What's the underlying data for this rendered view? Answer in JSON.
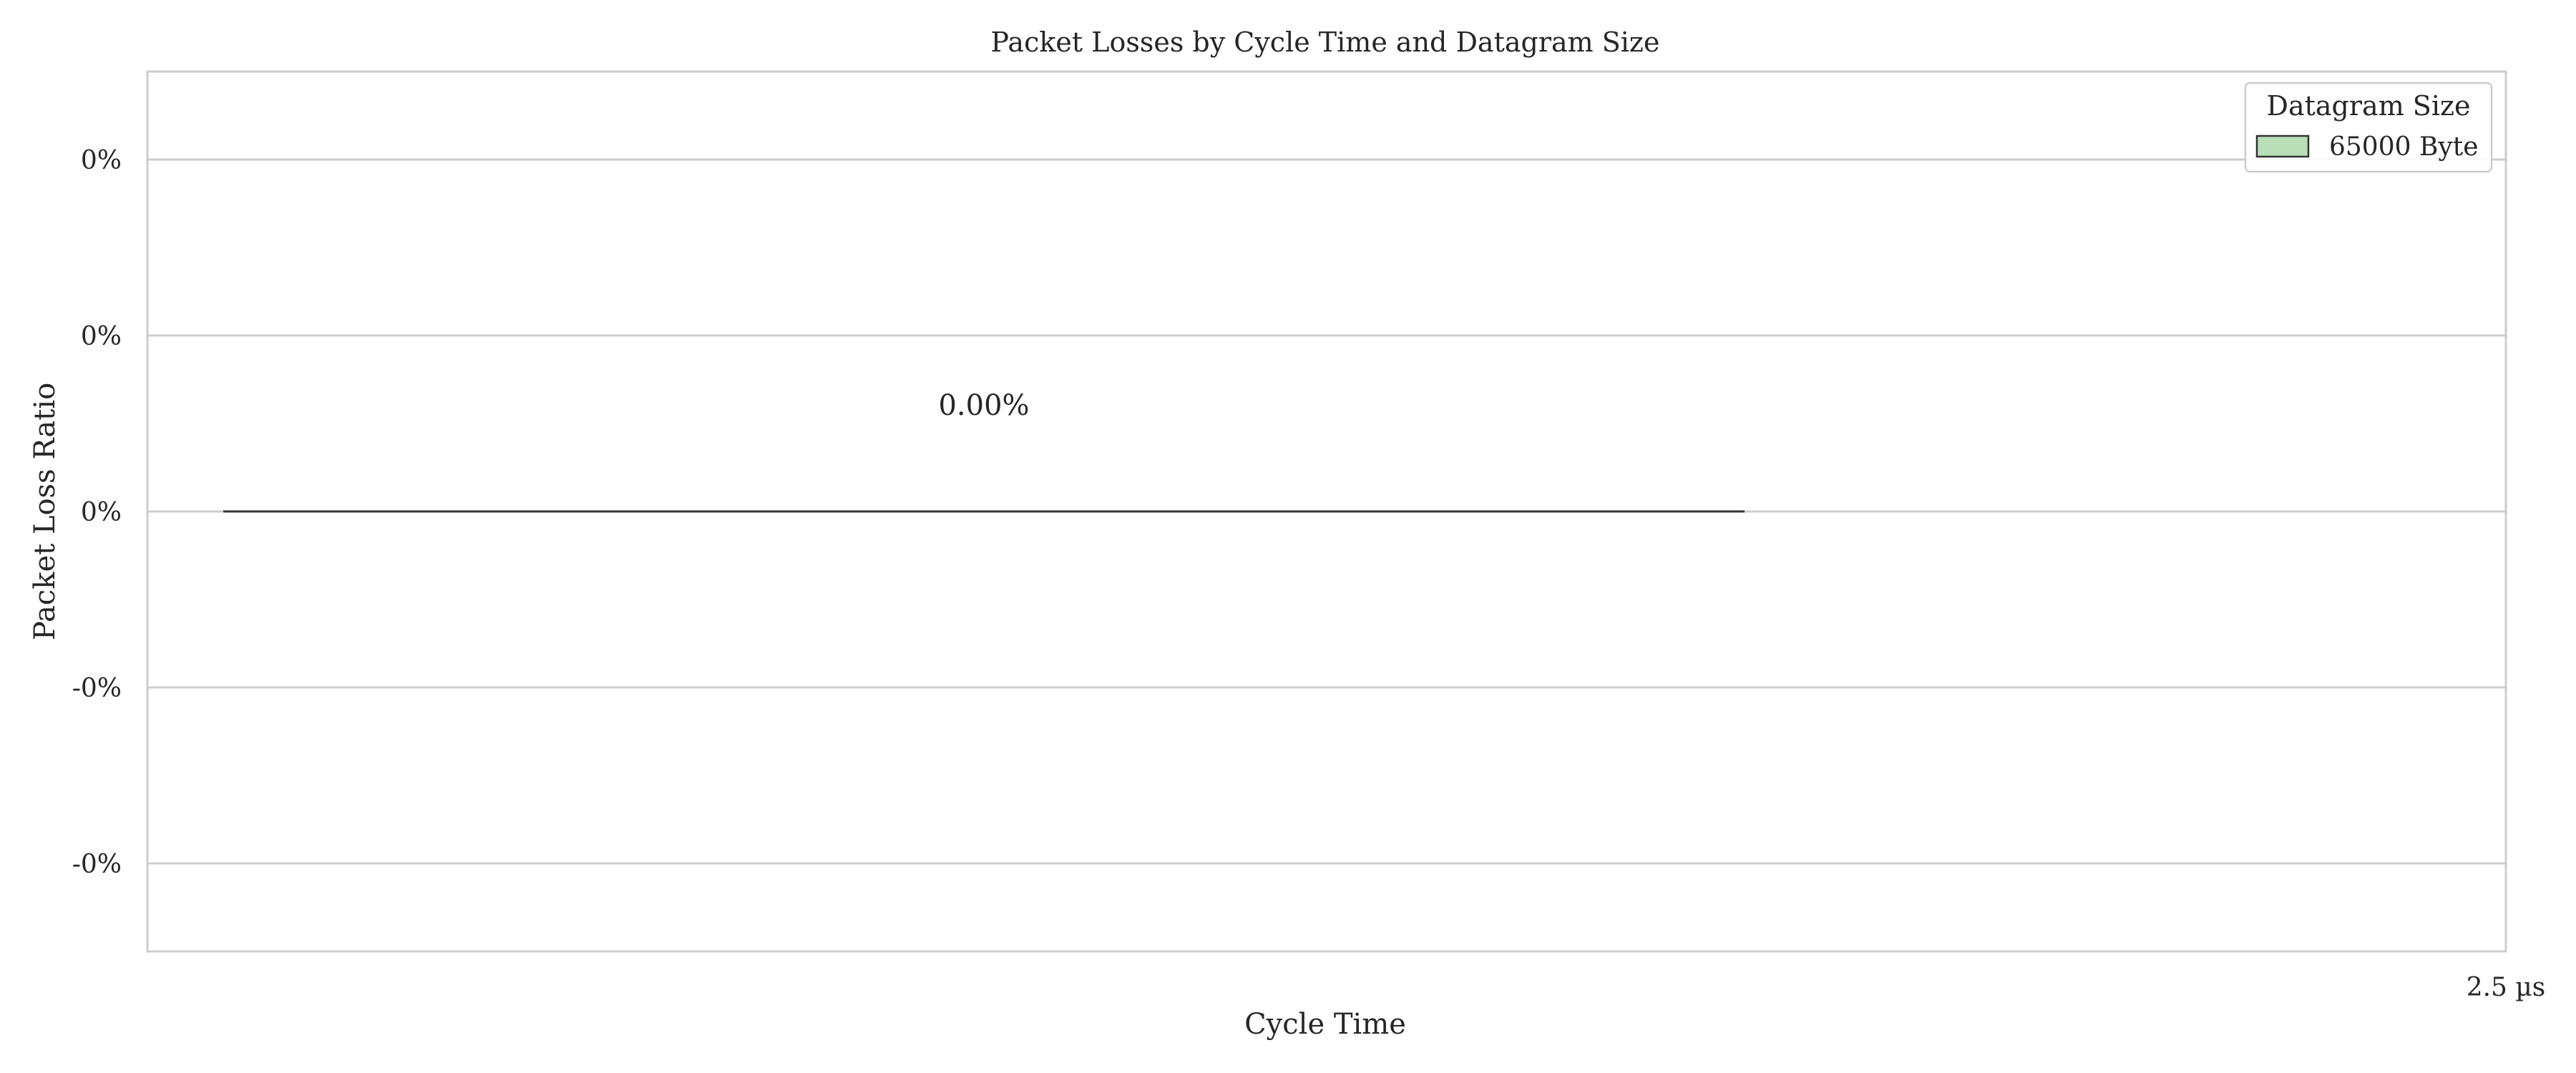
{
  "chart_data": {
    "type": "bar",
    "title": "Packet Losses by Cycle Time and Datagram Size",
    "xlabel": "Cycle Time",
    "ylabel": "Packet Loss Ratio",
    "categories": [
      "2.5 µs"
    ],
    "series": [
      {
        "name": "65000 Byte",
        "values": [
          0.0
        ],
        "labels": [
          "0.00%"
        ]
      }
    ],
    "ylim": [
      -0.05,
      0.05
    ],
    "yticks": [
      -0.04,
      -0.02,
      0.0,
      0.02,
      0.04
    ],
    "ytick_labels": [
      "-0%",
      "-0%",
      "0%",
      "0%",
      "0%"
    ],
    "grid": true,
    "legend": {
      "title": "Datagram Size",
      "placement": "top-right"
    },
    "colors": {
      "bar_fill": "#b8dfb8",
      "bar_edge": "#333333",
      "grid": "#cccccc",
      "frame": "#cccccc"
    }
  }
}
